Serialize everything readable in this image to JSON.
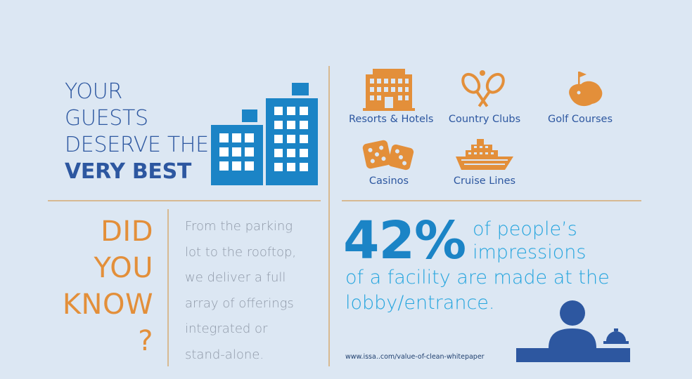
{
  "headline": {
    "lines": [
      "YOUR",
      "GUESTS",
      "DESERVE THE"
    ],
    "emphasis": "VERY BEST"
  },
  "categories": [
    {
      "label": "Resorts & Hotels",
      "icon": "hotel-icon"
    },
    {
      "label": "Country Clubs",
      "icon": "tennis-rackets-icon"
    },
    {
      "label": "Golf Courses",
      "icon": "golf-green-icon"
    },
    {
      "label": "Casinos",
      "icon": "dice-icon"
    },
    {
      "label": "Cruise Lines",
      "icon": "cruise-ship-icon"
    }
  ],
  "did_you_know": {
    "lines": [
      "DID",
      "YOU",
      "KNOW",
      "?"
    ]
  },
  "paragraph": {
    "lines": [
      "From the parking",
      "lot to the rooftop,",
      "we deliver a full",
      "array of offerings",
      "integrated or",
      "stand-alone."
    ]
  },
  "stat": {
    "value": "42%",
    "text_lines": [
      "of people’s",
      "impressions",
      "of a facility are made at the",
      "lobby/entrance."
    ]
  },
  "source_url": "www.issa..com/value-of-clean-whitepaper",
  "colors": {
    "background": "#dce7f3",
    "navy": "#2d57a0",
    "orange": "#e38f3a",
    "blue": "#1b84c6",
    "light_blue": "#26a5de",
    "rule": "#d7b991"
  }
}
